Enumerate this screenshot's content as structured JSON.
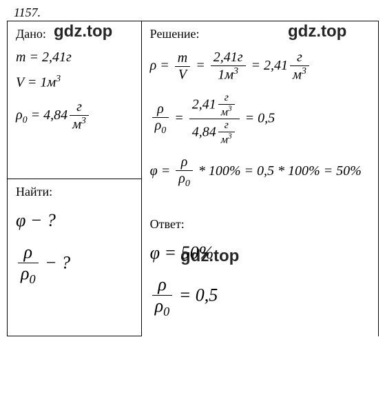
{
  "problem_number": "1157.",
  "labels": {
    "given": "Дано:",
    "find": "Найти:",
    "solution": "Решение:",
    "answer": "Ответ:"
  },
  "given": {
    "mass": "m = 2,41г",
    "volume_var": "V = 1м",
    "volume_exp": "3",
    "rho0_var": "ρ",
    "rho0_sub": "0",
    "rho0_eq": " = 4,84",
    "rho0_unit_num": "г",
    "rho0_unit_den": "м",
    "rho0_unit_exp": "3"
  },
  "find": {
    "phi": "φ − ?",
    "ratio_num": "ρ",
    "ratio_den_var": "ρ",
    "ratio_den_sub": "0",
    "ratio_suffix": " − ?"
  },
  "solution": {
    "line1_lhs": "ρ = ",
    "line1_f1_num": "m",
    "line1_f1_den": "V",
    "line1_eq1": " = ",
    "line1_f2_num": "2,41г",
    "line1_f2_den": "1м",
    "line1_f2_den_exp": "3",
    "line1_eq2": " = 2,41",
    "line1_unit_num": "г",
    "line1_unit_den": "м",
    "line1_unit_exp": "3",
    "line2_lhs_num": "ρ",
    "line2_lhs_den_var": "ρ",
    "line2_lhs_den_sub": "0",
    "line2_eq1": " = ",
    "line2_top_val": "2,41",
    "line2_top_unit_num": "г",
    "line2_top_unit_den": "м",
    "line2_top_unit_exp": "3",
    "line2_bot_val": "4,84",
    "line2_bot_unit_num": "г",
    "line2_bot_unit_den": "м",
    "line2_bot_unit_exp": "3",
    "line2_result": " = 0,5",
    "line3_lhs": "φ = ",
    "line3_f_num": "ρ",
    "line3_f_den_var": "ρ",
    "line3_f_den_sub": "0",
    "line3_mid": " * 100% = 0,5 * 100% = 50%"
  },
  "answer": {
    "phi": "φ = 50%",
    "ratio_num": "ρ",
    "ratio_den_var": "ρ",
    "ratio_den_sub": "0",
    "ratio_val": " = 0,5"
  },
  "watermark": "gdz.top",
  "colors": {
    "background": "#ffffff",
    "text": "#000000",
    "border": "#000000"
  }
}
